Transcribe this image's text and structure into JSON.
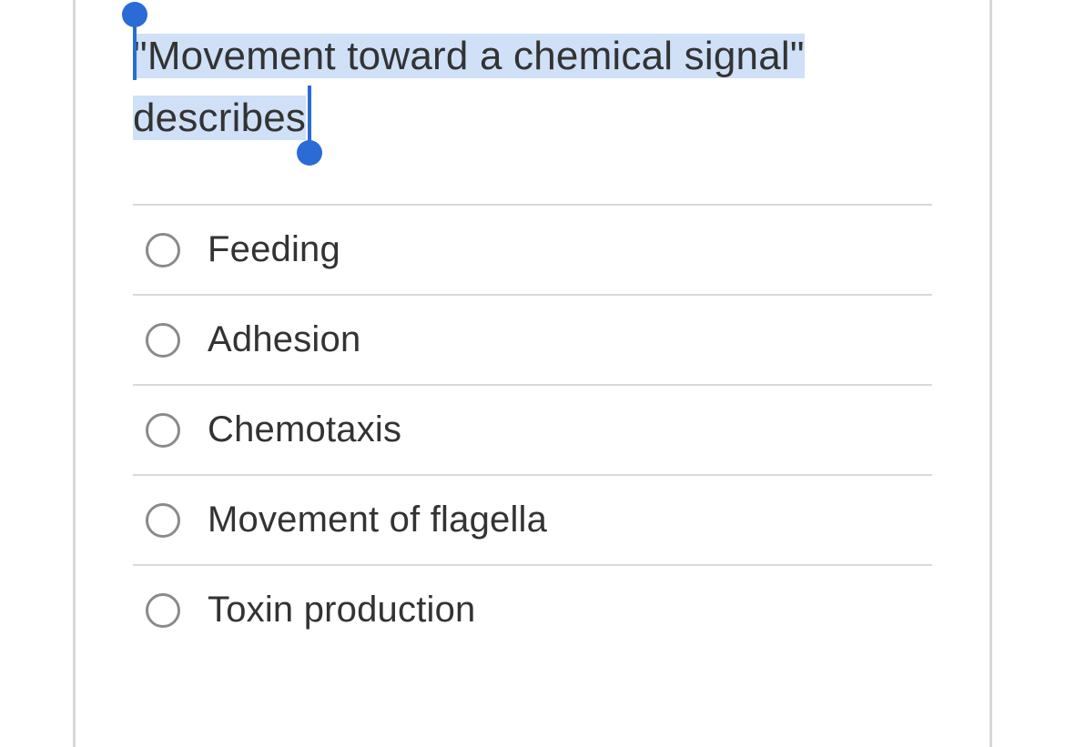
{
  "question": {
    "highlighted_line1": "\"Movement toward a chemical signal\"",
    "highlighted_line2": "describes",
    "selection_highlight_color": "#cfe0f7",
    "selection_handle_color": "#2a6bd6",
    "text_color": "#333333",
    "font_size_pt": 33
  },
  "options": [
    {
      "label": "Feeding"
    },
    {
      "label": "Adhesion"
    },
    {
      "label": "Chemotaxis"
    },
    {
      "label": "Movement of flagella"
    },
    {
      "label": "Toxin production"
    }
  ],
  "styling": {
    "divider_color": "#d9d9d9",
    "radio_border_color": "#8a8a8a",
    "card_border_color": "#d8d8d8",
    "background_color": "#ffffff",
    "option_font_size_pt": 30
  }
}
